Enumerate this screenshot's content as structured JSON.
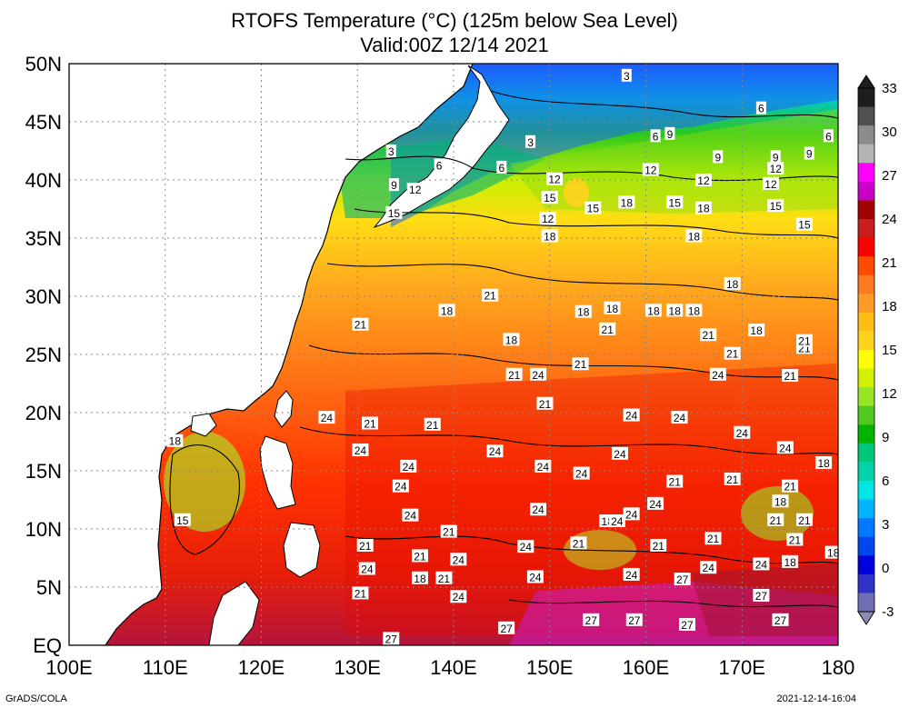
{
  "title_line1": "RTOFS Temperature (°C) (125m below Sea Level)",
  "title_line2": "Valid:00Z 12/14 2021",
  "credit_left": "GrADS/COLA",
  "credit_right": "2021-12-14-16:04",
  "lon_labels": [
    "100E",
    "110E",
    "120E",
    "130E",
    "140E",
    "150E",
    "160E",
    "170E",
    "180"
  ],
  "lat_labels": [
    "50N",
    "45N",
    "40N",
    "35N",
    "30N",
    "25N",
    "20N",
    "15N",
    "10N",
    "5N",
    "EQ"
  ],
  "colorbar": {
    "labels": [
      "33",
      "30",
      "27",
      "24",
      "21",
      "18",
      "15",
      "12",
      "9",
      "6",
      "3",
      "0",
      "-3"
    ],
    "colors": [
      "#1e1e1e",
      "#505050",
      "#8c8c8c",
      "#b4b4b4",
      "#ff00ff",
      "#c800c8",
      "#a00000",
      "#c81e1e",
      "#ff0000",
      "#ff4b00",
      "#ff7a1e",
      "#ff9a28",
      "#ffbe14",
      "#ffd21e",
      "#ffff00",
      "#d2f000",
      "#96e628",
      "#50c81e",
      "#00b400",
      "#00c878",
      "#00d2aa",
      "#00e6e6",
      "#00b4ff",
      "#0078ff",
      "#0046f0",
      "#0000dc",
      "#3232c8",
      "#6e6eb4"
    ]
  },
  "contour_labels": [
    {
      "t": "3",
      "lon": 158,
      "lat": 49
    },
    {
      "t": "3",
      "lon": 133.5,
      "lat": 42.5
    },
    {
      "t": "3",
      "lon": 148,
      "lat": 43.3
    },
    {
      "t": "6",
      "lon": 172,
      "lat": 46.2
    },
    {
      "t": "6",
      "lon": 138.5,
      "lat": 41.3
    },
    {
      "t": "6",
      "lon": 145,
      "lat": 41.1
    },
    {
      "t": "6",
      "lon": 161,
      "lat": 43.8
    },
    {
      "t": "9",
      "lon": 162.5,
      "lat": 44
    },
    {
      "t": "9",
      "lon": 133.8,
      "lat": 39.6
    },
    {
      "t": "9",
      "lon": 167.5,
      "lat": 42
    },
    {
      "t": "9",
      "lon": 177,
      "lat": 42.3
    },
    {
      "t": "9",
      "lon": 173.5,
      "lat": 42
    },
    {
      "t": "6",
      "lon": 179,
      "lat": 43.8
    },
    {
      "t": "12",
      "lon": 136,
      "lat": 39.2
    },
    {
      "t": "12",
      "lon": 150.5,
      "lat": 40.1
    },
    {
      "t": "12",
      "lon": 160.5,
      "lat": 40.9
    },
    {
      "t": "12",
      "lon": 166,
      "lat": 40
    },
    {
      "t": "12",
      "lon": 173,
      "lat": 39.7
    },
    {
      "t": "12",
      "lon": 173.5,
      "lat": 41
    },
    {
      "t": "12",
      "lon": 149.8,
      "lat": 36.7
    },
    {
      "t": "15",
      "lon": 133.8,
      "lat": 37.2
    },
    {
      "t": "15",
      "lon": 150,
      "lat": 38.5
    },
    {
      "t": "15",
      "lon": 154.5,
      "lat": 37.6
    },
    {
      "t": "15",
      "lon": 163,
      "lat": 38.1
    },
    {
      "t": "15",
      "lon": 173.5,
      "lat": 37.8
    },
    {
      "t": "15",
      "lon": 176.5,
      "lat": 36.2
    },
    {
      "t": "15",
      "lon": 111.8,
      "lat": 10.8
    },
    {
      "t": "18",
      "lon": 158,
      "lat": 38.1
    },
    {
      "t": "18",
      "lon": 166,
      "lat": 37.6
    },
    {
      "t": "18",
      "lon": 165,
      "lat": 35.2
    },
    {
      "t": "18",
      "lon": 150,
      "lat": 35.2
    },
    {
      "t": "18",
      "lon": 169,
      "lat": 31.1
    },
    {
      "t": "18",
      "lon": 139.3,
      "lat": 28.8
    },
    {
      "t": "18",
      "lon": 153.5,
      "lat": 28.7
    },
    {
      "t": "18",
      "lon": 156.5,
      "lat": 29
    },
    {
      "t": "18",
      "lon": 160.8,
      "lat": 28.8
    },
    {
      "t": "18",
      "lon": 163,
      "lat": 28.8
    },
    {
      "t": "18",
      "lon": 165,
      "lat": 28.8
    },
    {
      "t": "18",
      "lon": 146,
      "lat": 26.3
    },
    {
      "t": "18",
      "lon": 171.5,
      "lat": 27.1
    },
    {
      "t": "18",
      "lon": 111,
      "lat": 17.6
    },
    {
      "t": "18",
      "lon": 178.5,
      "lat": 15.7
    },
    {
      "t": "18",
      "lon": 174,
      "lat": 12.4
    },
    {
      "t": "18",
      "lon": 175,
      "lat": 7.2
    },
    {
      "t": "18",
      "lon": 179.5,
      "lat": 8
    },
    {
      "t": "18",
      "lon": 156,
      "lat": 10.7
    },
    {
      "t": "18",
      "lon": 136.5,
      "lat": 5.8
    },
    {
      "t": "21",
      "lon": 130.3,
      "lat": 27.6
    },
    {
      "t": "21",
      "lon": 143.8,
      "lat": 30.1
    },
    {
      "t": "21",
      "lon": 156,
      "lat": 27.2
    },
    {
      "t": "21",
      "lon": 166.5,
      "lat": 26.7
    },
    {
      "t": "21",
      "lon": 169,
      "lat": 25.1
    },
    {
      "t": "21",
      "lon": 176.5,
      "lat": 25.6
    },
    {
      "t": "21",
      "lon": 176.5,
      "lat": 26.2
    },
    {
      "t": "21",
      "lon": 153.2,
      "lat": 24.2
    },
    {
      "t": "21",
      "lon": 146.3,
      "lat": 23.3
    },
    {
      "t": "21",
      "lon": 175,
      "lat": 23.2
    },
    {
      "t": "21",
      "lon": 149.5,
      "lat": 20.8
    },
    {
      "t": "21",
      "lon": 131.3,
      "lat": 19.1
    },
    {
      "t": "21",
      "lon": 137.8,
      "lat": 19
    },
    {
      "t": "21",
      "lon": 163,
      "lat": 14.1
    },
    {
      "t": "21",
      "lon": 169,
      "lat": 14.3
    },
    {
      "t": "21",
      "lon": 175,
      "lat": 13.7
    },
    {
      "t": "21",
      "lon": 173.5,
      "lat": 10.8
    },
    {
      "t": "21",
      "lon": 176.5,
      "lat": 10.8
    },
    {
      "t": "21",
      "lon": 139.5,
      "lat": 9.8
    },
    {
      "t": "21",
      "lon": 167,
      "lat": 9.2
    },
    {
      "t": "21",
      "lon": 175.5,
      "lat": 9.1
    },
    {
      "t": "21",
      "lon": 130.8,
      "lat": 8.6
    },
    {
      "t": "21",
      "lon": 153,
      "lat": 8.8
    },
    {
      "t": "21",
      "lon": 161.3,
      "lat": 8.6
    },
    {
      "t": "21",
      "lon": 136.5,
      "lat": 7.7
    },
    {
      "t": "21",
      "lon": 139,
      "lat": 5.8
    },
    {
      "t": "21",
      "lon": 130.3,
      "lat": 4.5
    },
    {
      "t": "24",
      "lon": 148.8,
      "lat": 23.3
    },
    {
      "t": "24",
      "lon": 167.5,
      "lat": 23.3
    },
    {
      "t": "24",
      "lon": 126.8,
      "lat": 19.6
    },
    {
      "t": "24",
      "lon": 158.5,
      "lat": 19.8
    },
    {
      "t": "24",
      "lon": 163.5,
      "lat": 19.6
    },
    {
      "t": "24",
      "lon": 170,
      "lat": 18.3
    },
    {
      "t": "24",
      "lon": 130.3,
      "lat": 16.8
    },
    {
      "t": "24",
      "lon": 144.3,
      "lat": 16.7
    },
    {
      "t": "24",
      "lon": 174.5,
      "lat": 17
    },
    {
      "t": "24",
      "lon": 157.3,
      "lat": 16.5
    },
    {
      "t": "24",
      "lon": 135.3,
      "lat": 15.4
    },
    {
      "t": "24",
      "lon": 149.3,
      "lat": 15.4
    },
    {
      "t": "24",
      "lon": 153.3,
      "lat": 14.8
    },
    {
      "t": "24",
      "lon": 134.5,
      "lat": 13.7
    },
    {
      "t": "24",
      "lon": 161,
      "lat": 12.2
    },
    {
      "t": "24",
      "lon": 148.8,
      "lat": 11.7
    },
    {
      "t": "24",
      "lon": 135.5,
      "lat": 11.2
    },
    {
      "t": "24",
      "lon": 158.5,
      "lat": 11.3
    },
    {
      "t": "24",
      "lon": 157,
      "lat": 10.7
    },
    {
      "t": "24",
      "lon": 140.5,
      "lat": 7.4
    },
    {
      "t": "24",
      "lon": 147.5,
      "lat": 8.5
    },
    {
      "t": "24",
      "lon": 131,
      "lat": 6.6
    },
    {
      "t": "24",
      "lon": 166.5,
      "lat": 6.7
    },
    {
      "t": "24",
      "lon": 172,
      "lat": 7
    },
    {
      "t": "24",
      "lon": 148.5,
      "lat": 5.9
    },
    {
      "t": "24",
      "lon": 158.5,
      "lat": 6.1
    },
    {
      "t": "24",
      "lon": 140.5,
      "lat": 4.2
    },
    {
      "t": "27",
      "lon": 163.8,
      "lat": 5.7
    },
    {
      "t": "27",
      "lon": 172,
      "lat": 4.3
    },
    {
      "t": "27",
      "lon": 154.3,
      "lat": 2.2
    },
    {
      "t": "27",
      "lon": 158.8,
      "lat": 2.2
    },
    {
      "t": "27",
      "lon": 174,
      "lat": 2.2
    },
    {
      "t": "27",
      "lon": 145.5,
      "lat": 1.5
    },
    {
      "t": "27",
      "lon": 164.3,
      "lat": 1.8
    },
    {
      "t": "27",
      "lon": 133.5,
      "lat": 0.6
    }
  ]
}
